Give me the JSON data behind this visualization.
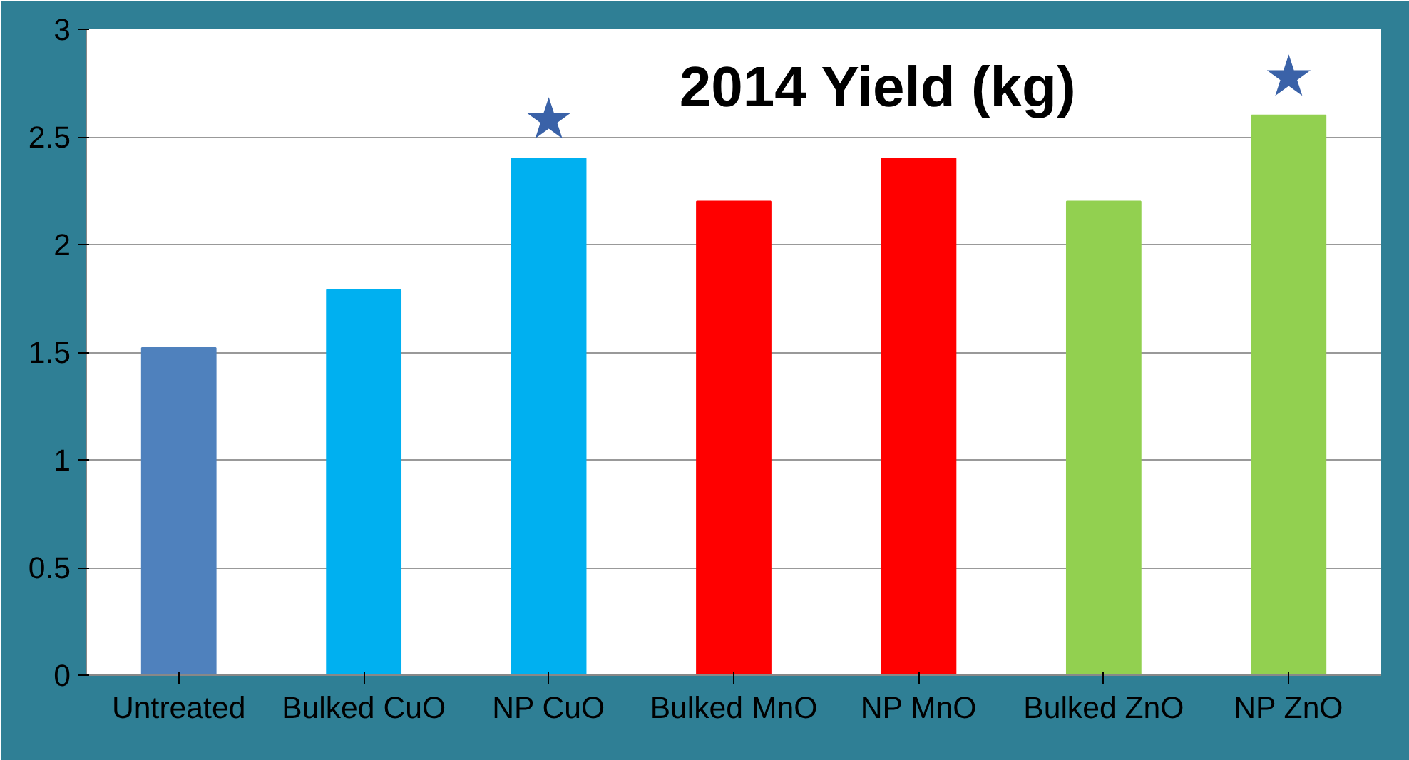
{
  "chart_data": {
    "type": "bar",
    "title": "2014 Yield (kg)",
    "categories": [
      "Untreated",
      "Bulked CuO",
      "NP CuO",
      "Bulked MnO",
      "NP MnO",
      "Bulked ZnO",
      "NP ZnO"
    ],
    "values": [
      1.52,
      1.79,
      2.4,
      2.2,
      2.4,
      2.2,
      2.6
    ],
    "colors": [
      "#4f81bd",
      "#00b0f0",
      "#00b0f0",
      "#ff0000",
      "#ff0000",
      "#92d050",
      "#92d050"
    ],
    "ylim": [
      0,
      3
    ],
    "yticks": [
      0,
      0.5,
      1,
      1.5,
      2,
      2.5,
      3
    ],
    "grid": "y",
    "annotations": [
      {
        "text": "★",
        "x": "NP CuO",
        "y": 2.4
      },
      {
        "text": "★",
        "x": "NP ZnO",
        "y": 2.6
      }
    ]
  }
}
